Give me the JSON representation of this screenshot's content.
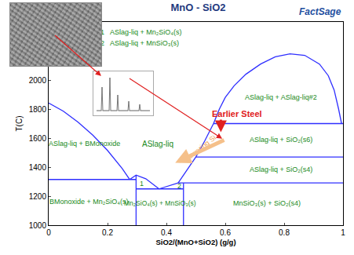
{
  "chart_data": {
    "type": "line",
    "title": "MnO - SiO2",
    "logo": "FactSage",
    "x_label": "SiO2/(MnO+SiO2) (g/g)",
    "y_label": "T(C)",
    "xlim": [
      0,
      1
    ],
    "xticks": [
      0,
      0.2,
      0.4,
      0.6,
      0.8,
      1
    ],
    "ylim": [
      1000,
      2400
    ],
    "yticks": [
      1000,
      1200,
      1400,
      1600,
      1800,
      2000
    ],
    "grid": false,
    "color": "#2f2fff",
    "series": [
      {
        "x": [
          0,
          0.05,
          0.1,
          0.15,
          0.2,
          0.25,
          0.275
        ],
        "y": [
          1842,
          1785,
          1710,
          1620,
          1515,
          1390,
          1315
        ]
      },
      {
        "x": [
          0.275,
          0.297,
          0.33,
          0.36,
          0.375
        ],
        "y": [
          1315,
          1345,
          1320,
          1275,
          1250
        ]
      },
      {
        "x": [
          0.375,
          0.41,
          0.44
        ],
        "y": [
          1250,
          1270,
          1291
        ]
      },
      {
        "x": [
          0.44,
          0.47,
          0.5,
          0.53,
          0.56
        ],
        "y": [
          1291,
          1380,
          1470,
          1580,
          1700
        ]
      },
      {
        "x": [
          0.56,
          0.58,
          0.6,
          0.63,
          0.67,
          0.72,
          0.77,
          0.82,
          0.87,
          0.92,
          0.95,
          0.97,
          0.985,
          0.995
        ],
        "y": [
          1700,
          1800,
          1880,
          1960,
          2040,
          2110,
          2160,
          2180,
          2170,
          2110,
          2030,
          1930,
          1800,
          1700
        ]
      },
      {
        "x": [
          0,
          0.297
        ],
        "y": [
          1315,
          1315
        ]
      },
      {
        "x": [
          0.297,
          0.297
        ],
        "y": [
          1000,
          1345
        ]
      },
      {
        "x": [
          0.297,
          0.458
        ],
        "y": [
          1250,
          1250
        ]
      },
      {
        "x": [
          0.458,
          0.458
        ],
        "y": [
          1000,
          1291
        ]
      },
      {
        "x": [
          0.44,
          1
        ],
        "y": [
          1291,
          1291
        ]
      },
      {
        "x": [
          0.5,
          1
        ],
        "y": [
          1470,
          1470
        ]
      },
      {
        "x": [
          0.56,
          1
        ],
        "y": [
          1700,
          1700
        ]
      }
    ],
    "annotations": [
      {
        "text": "1   ASlag-liq + Mn₂SiO₄(s)",
        "color": "#1a8a1a"
      },
      {
        "text": "2   ASlag-liq + MnSiO₃(s)",
        "color": "#1a8a1a"
      },
      {
        "text": "ASlag-liq + BMonoxide",
        "color": "#1a8a1a"
      },
      {
        "text": "ASlag-liq",
        "color": "#1a8a1a"
      },
      {
        "text": "BMonoxide + Mn₂SiO₄(s)",
        "color": "#1a8a1a"
      },
      {
        "text": "1",
        "color": "#1a8a1a"
      },
      {
        "text": "2",
        "color": "#1a8a1a"
      },
      {
        "text": "Mn₂SiO₄(s) + MnSiO₃(s)",
        "color": "#1a8a1a"
      },
      {
        "text": "MnSiO₃(s) + SiO₂(s4)",
        "color": "#1a8a1a"
      },
      {
        "text": "ASlag-liq + SiO₂(s4)",
        "color": "#1a8a1a"
      },
      {
        "text": "ASlag-liq + SiO₂(s6)",
        "color": "#1a8a1a"
      },
      {
        "text": "ASlag-liq + ASlag-liq#2",
        "color": "#1a8a1a"
      },
      {
        "text": "Earlier Steel",
        "color": "#e02020"
      },
      {
        "text": "Lowering Si",
        "color": "#f0a050"
      }
    ]
  }
}
